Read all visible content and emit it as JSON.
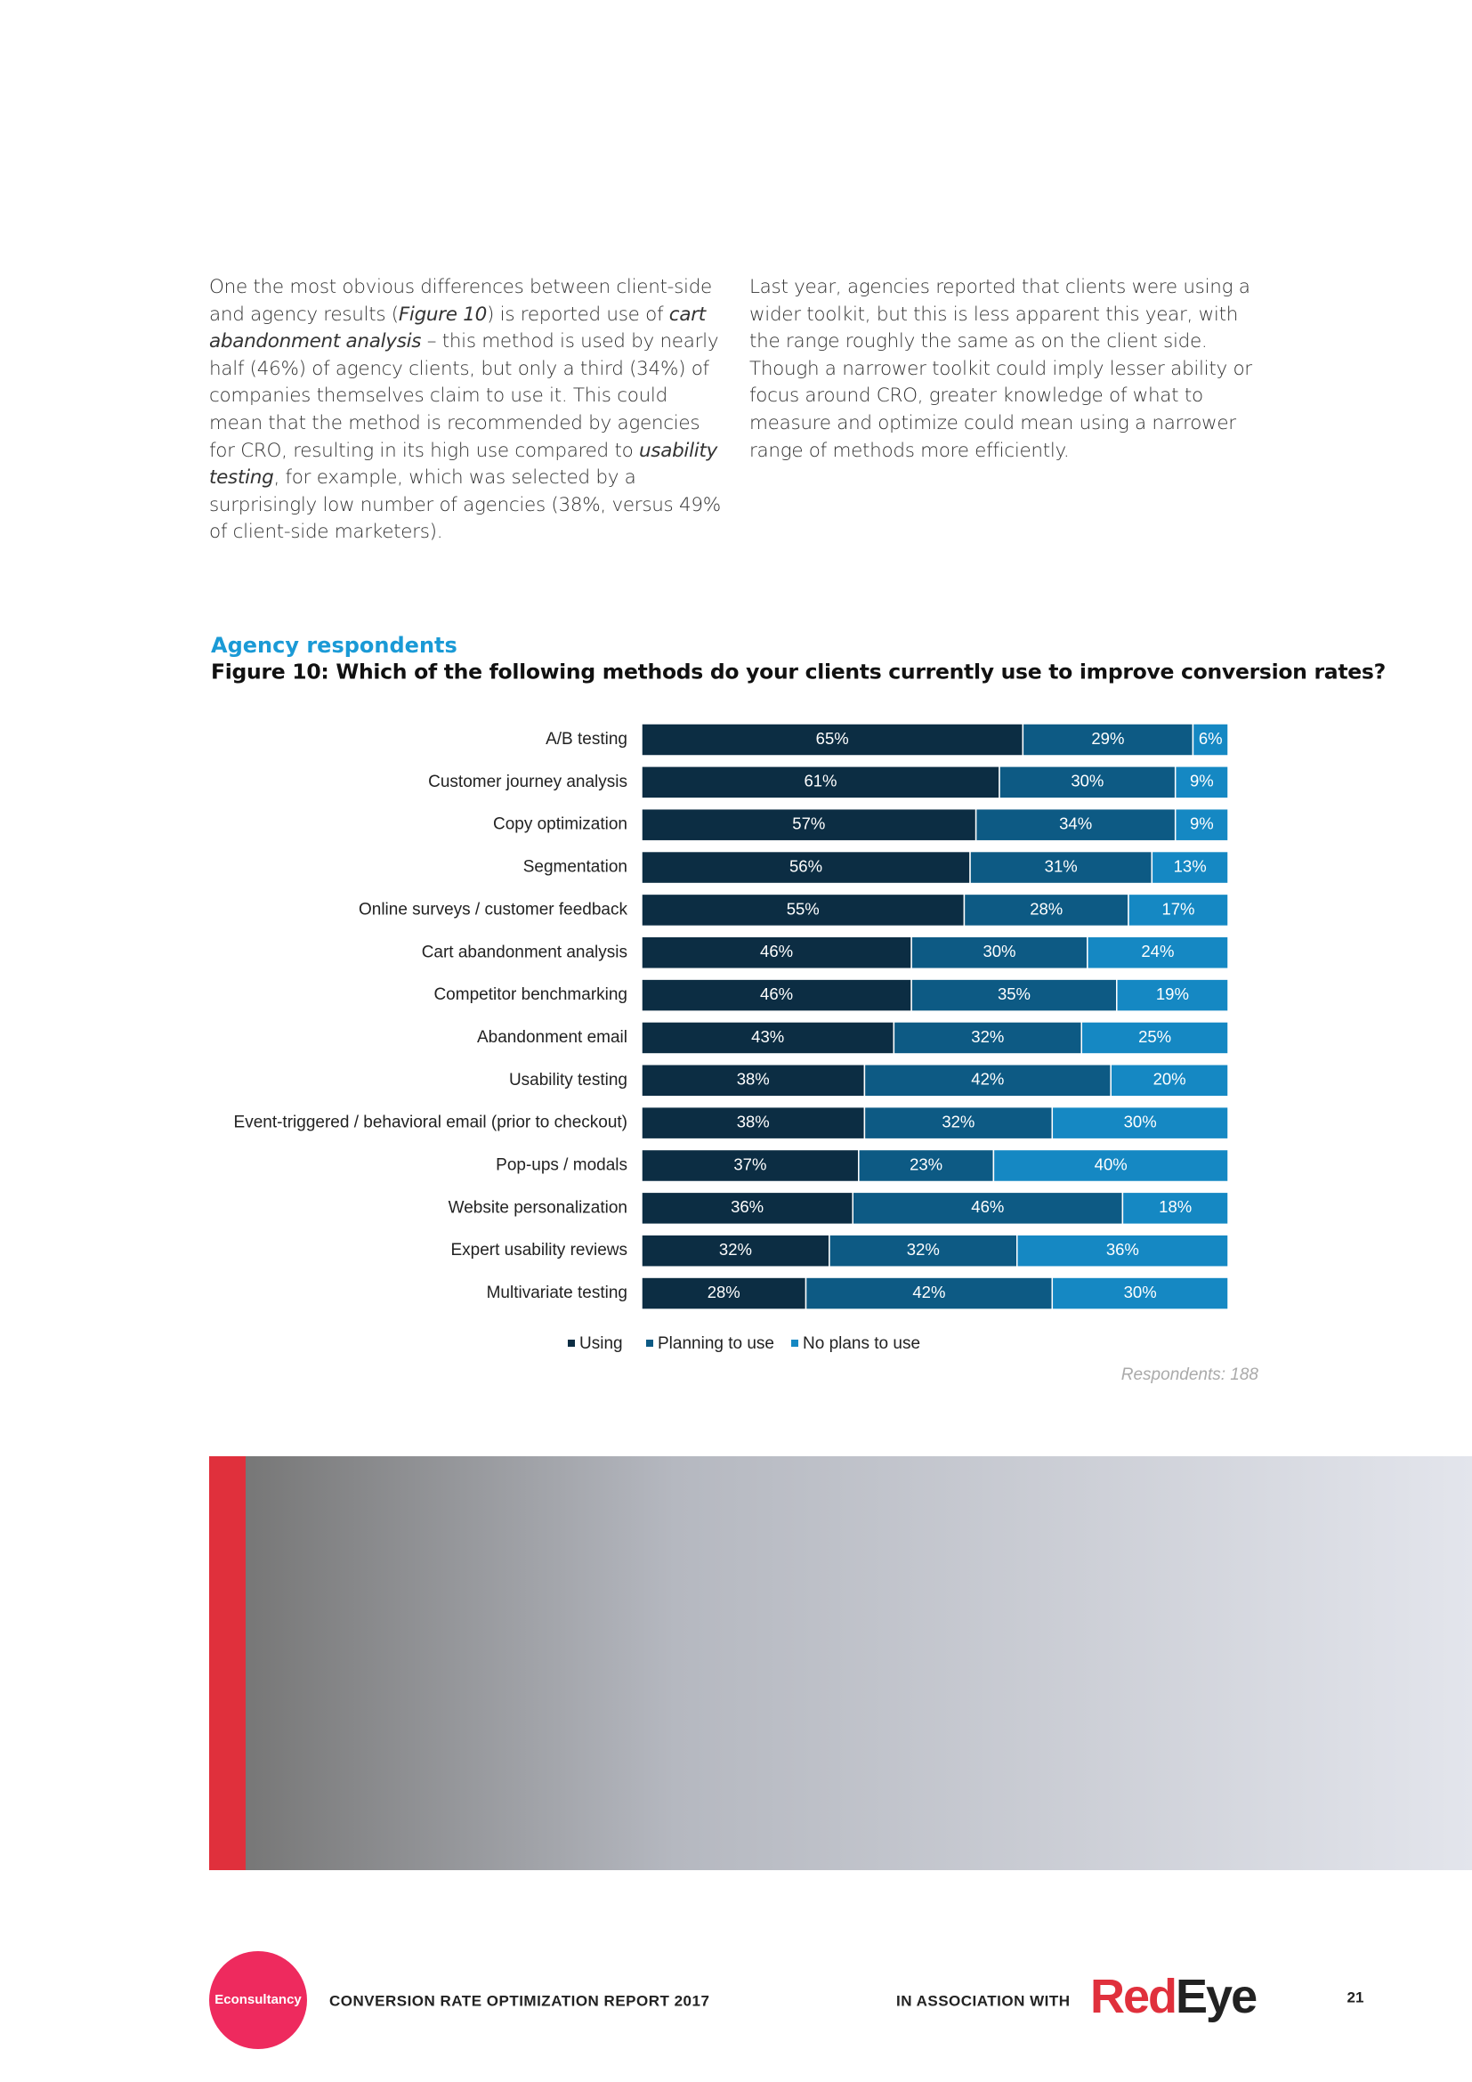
{
  "body": {
    "columns": [
      [
        "One the most obvious differences between client-side and agency results (",
        "Figure 10",
        ") is reported use of ",
        "cart abandonment analysis",
        " – this method is used by nearly half (46%) of agency clients, but only a third (34%) of companies themselves claim to use it. This could mean that the method is recommended by agencies for CRO, resulting in its high use compared to ",
        "usability testing",
        ", for example, which was selected by a surprisingly low number of agencies (38%, versus 49% of client-side marketers)."
      ],
      [
        "Last year, agencies reported that clients were using a wider toolkit, but this is less apparent this year, with the range roughly the same as on the client side. Though a narrower toolkit could imply lesser ability or focus around CRO, greater knowledge of what to measure and optimize could mean using a narrower range of methods more efficiently."
      ]
    ]
  },
  "chart_data": {
    "type": "stacked-bar-horizontal",
    "subtitle": "Agency respondents",
    "title": "Figure 10: Which of the following methods do your clients currently use to improve conversion rates?",
    "note": "Respondents: 188",
    "xlim": [
      0,
      100
    ],
    "categories": [
      "A/B testing",
      "Customer journey analysis",
      "Copy optimization",
      "Segmentation",
      "Online surveys / customer feedback",
      "Cart abandonment analysis",
      "Competitor benchmarking",
      "Abandonment email",
      "Usability testing",
      "Event-triggered / behavioral email (prior to checkout)",
      "Pop-ups / modals",
      "Website personalization",
      "Expert usability reviews",
      "Multivariate testing"
    ],
    "series": [
      {
        "name": "Using",
        "color": "#0c2d43",
        "values": [
          65,
          61,
          57,
          56,
          55,
          46,
          46,
          43,
          38,
          38,
          37,
          36,
          32,
          28
        ],
        "value_labels": [
          "65%",
          "61%",
          "57%",
          "56%",
          "55%",
          "46%",
          "46%",
          "43%",
          "38%",
          "38%",
          "37%",
          "36%",
          "32%",
          "28%"
        ]
      },
      {
        "name": "Planning to use",
        "color": "#0d5a84",
        "values": [
          29,
          30,
          34,
          31,
          28,
          30,
          35,
          32,
          42,
          32,
          23,
          46,
          32,
          42
        ],
        "value_labels": [
          "29%",
          "30%",
          "34%",
          "31%",
          "28%",
          "30%",
          "35%",
          "32%",
          "42%",
          "32%",
          "23%",
          "46%",
          "32%",
          "42%"
        ]
      },
      {
        "name": "No plans to use",
        "color": "#1588c3",
        "values": [
          6,
          9,
          9,
          13,
          17,
          24,
          19,
          25,
          20,
          30,
          40,
          18,
          36,
          30
        ],
        "value_labels": [
          "6%",
          "9%",
          "9%",
          "13%",
          "17%",
          "24%",
          "19%",
          "25%",
          "20%",
          "30%",
          "40%",
          "18%",
          "36%",
          "30%"
        ]
      }
    ]
  },
  "footer": {
    "brand": "Econsultancy",
    "report": "CONVERSION RATE OPTIMIZATION REPORT 2017",
    "association": "IN ASSOCIATION WITH",
    "partner": [
      "Red",
      "Eye"
    ],
    "page": "21"
  }
}
